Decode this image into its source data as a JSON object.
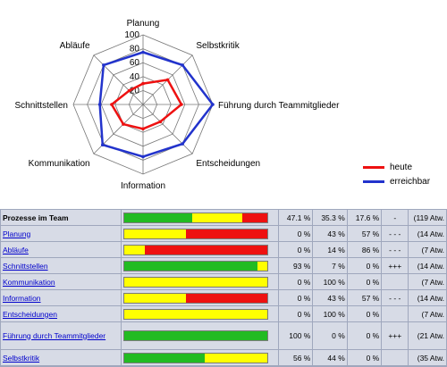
{
  "chart_data": {
    "type": "radar",
    "axes": [
      "Planung",
      "Selbstkritik",
      "Führung durch Teammitglieder",
      "Entscheidungen",
      "Information",
      "Kommunikation",
      "Schnittstellen",
      "Abläufe"
    ],
    "axis_labels": [
      "Planung",
      "Selbstkritik",
      "Führung durch Teammitglieder",
      "Entscheidungen",
      "Information",
      "Kommunikation",
      "Schnittstellen",
      "Abläufe"
    ],
    "rlim": [
      0,
      100
    ],
    "ticks": [
      0,
      20,
      40,
      60,
      80,
      100
    ],
    "tick_labels": [
      "20",
      "40",
      "60",
      "80",
      "100"
    ],
    "series": [
      {
        "name": "heute",
        "color": "#ee1111",
        "values": [
          30,
          50,
          55,
          35,
          35,
          40,
          45,
          28
        ]
      },
      {
        "name": "erreichbar",
        "color": "#2233cc",
        "values": [
          75,
          80,
          100,
          80,
          75,
          82,
          62,
          80
        ]
      }
    ],
    "grid": true
  },
  "legend": {
    "items": [
      {
        "label": "heute",
        "color": "#ee1111"
      },
      {
        "label": "erreichbar",
        "color": "#2233cc"
      }
    ]
  },
  "colors": {
    "green": "#22bb22",
    "yellow": "#ffff00",
    "red": "#ee1111"
  },
  "table": {
    "rows": [
      {
        "name": "Prozesse im Team",
        "link": false,
        "green": 47.1,
        "yellow": 35.3,
        "red": 17.6,
        "green_text": "47.1 %",
        "yellow_text": "35.3 %",
        "red_text": "17.6 %",
        "trend": "-",
        "count": "(119 Atw."
      },
      {
        "name": "Planung",
        "link": true,
        "green": 0,
        "yellow": 43,
        "red": 57,
        "green_text": "0 %",
        "yellow_text": "43 %",
        "red_text": "57 %",
        "trend": "- - -",
        "count": "(14 Atw."
      },
      {
        "name": "Abläufe",
        "link": true,
        "green": 0,
        "yellow": 14,
        "red": 86,
        "green_text": "0 %",
        "yellow_text": "14 %",
        "red_text": "86 %",
        "trend": "- - -",
        "count": "(7 Atw."
      },
      {
        "name": "Schnittstellen",
        "link": true,
        "green": 93,
        "yellow": 7,
        "red": 0,
        "green_text": "93 %",
        "yellow_text": "7 %",
        "red_text": "0 %",
        "trend": "+++",
        "count": "(14 Atw."
      },
      {
        "name": "Kommunikation",
        "link": true,
        "green": 0,
        "yellow": 100,
        "red": 0,
        "green_text": "0 %",
        "yellow_text": "100 %",
        "red_text": "0 %",
        "trend": "",
        "count": "(7 Atw."
      },
      {
        "name": "Information",
        "link": true,
        "green": 0,
        "yellow": 43,
        "red": 57,
        "green_text": "0 %",
        "yellow_text": "43 %",
        "red_text": "57 %",
        "trend": "- - -",
        "count": "(14 Atw."
      },
      {
        "name": "Entscheidungen",
        "link": true,
        "green": 0,
        "yellow": 100,
        "red": 0,
        "green_text": "0 %",
        "yellow_text": "100 %",
        "red_text": "0 %",
        "trend": "",
        "count": "(7 Atw."
      },
      {
        "name": "Führung durch Teammitglieder",
        "link": true,
        "green": 100,
        "yellow": 0,
        "red": 0,
        "green_text": "100 %",
        "yellow_text": "0 %",
        "red_text": "0 %",
        "trend": "+++",
        "count": "(21 Atw."
      },
      {
        "name": "Selbstkritik",
        "link": true,
        "green": 56,
        "yellow": 44,
        "red": 0,
        "green_text": "56 %",
        "yellow_text": "44 %",
        "red_text": "0 %",
        "trend": "",
        "count": "(35 Atw."
      }
    ]
  }
}
